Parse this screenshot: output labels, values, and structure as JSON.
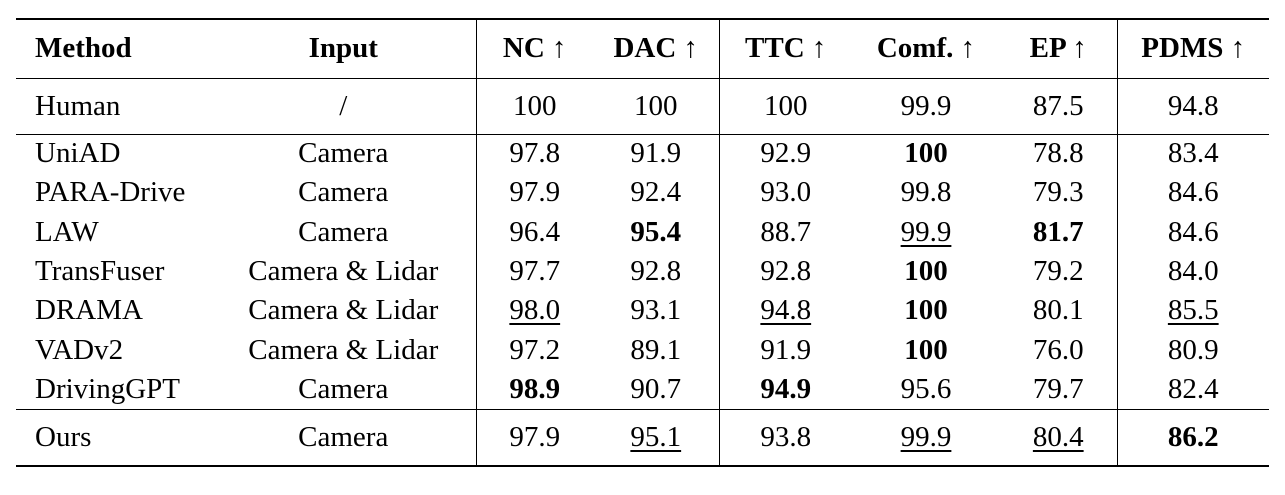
{
  "table": {
    "headers": [
      "Method",
      "Input",
      "NC ↑",
      "DAC ↑",
      "TTC ↑",
      "Comf. ↑",
      "EP ↑",
      "PDMS ↑"
    ],
    "human": {
      "method": "Human",
      "input": "/",
      "values": [
        "100",
        "100",
        "100",
        "99.9",
        "87.5",
        "94.8"
      ]
    },
    "rows": [
      {
        "method": "UniAD",
        "input": "Camera",
        "values": [
          "97.8",
          "91.9",
          "92.9",
          "100",
          "78.8",
          "83.4"
        ]
      },
      {
        "method": "PARA-Drive",
        "input": "Camera",
        "values": [
          "97.9",
          "92.4",
          "93.0",
          "99.8",
          "79.3",
          "84.6"
        ]
      },
      {
        "method": "LAW",
        "input": "Camera",
        "values": [
          "96.4",
          "95.4",
          "88.7",
          "99.9",
          "81.7",
          "84.6"
        ]
      },
      {
        "method": "TransFuser",
        "input": "Camera & Lidar",
        "values": [
          "97.7",
          "92.8",
          "92.8",
          "100",
          "79.2",
          "84.0"
        ]
      },
      {
        "method": "DRAMA",
        "input": "Camera & Lidar",
        "values": [
          "98.0",
          "93.1",
          "94.8",
          "100",
          "80.1",
          "85.5"
        ]
      },
      {
        "method": "VADv2",
        "input": "Camera & Lidar",
        "values": [
          "97.2",
          "89.1",
          "91.9",
          "100",
          "76.0",
          "80.9"
        ]
      },
      {
        "method": "DrivingGPT",
        "input": "Camera",
        "values": [
          "98.9",
          "90.7",
          "94.9",
          "95.6",
          "79.7",
          "82.4"
        ]
      }
    ],
    "ours": {
      "method": "Ours",
      "input": "Camera",
      "values": [
        "97.9",
        "95.1",
        "93.8",
        "99.9",
        "80.4",
        "86.2"
      ]
    }
  }
}
